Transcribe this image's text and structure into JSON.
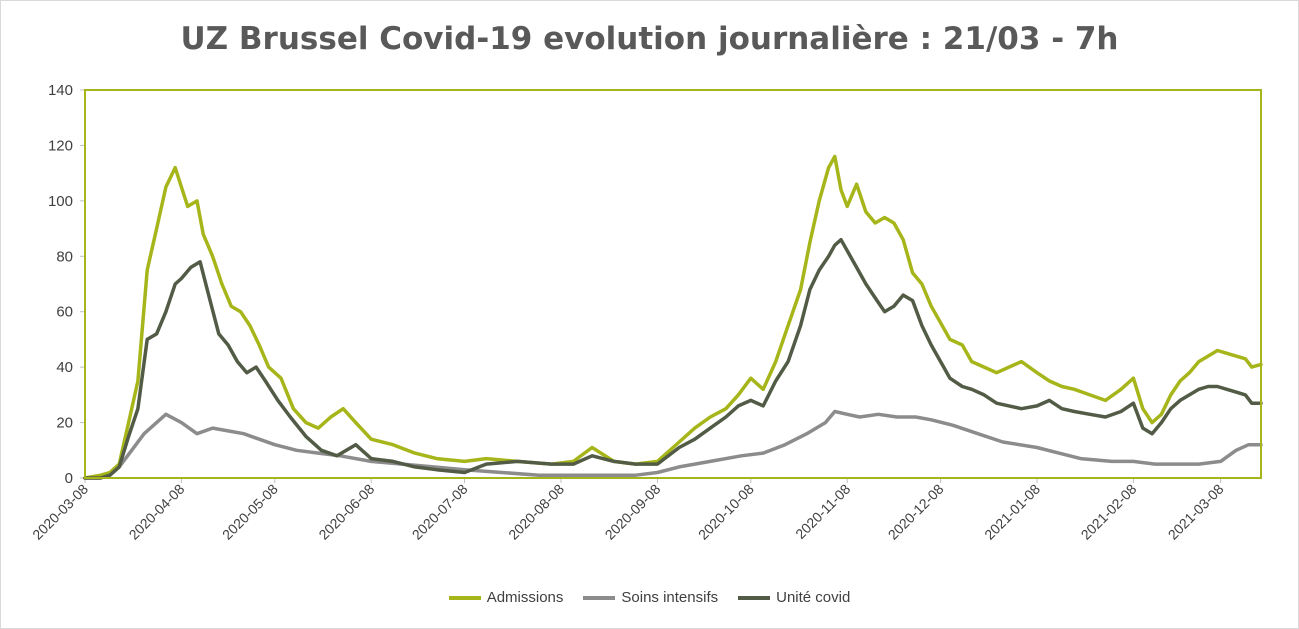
{
  "chart_data": {
    "type": "line",
    "title": "UZ Brussel Covid-19 evolution journalière : 21/03 - 7h",
    "xlabel": "",
    "ylabel": "",
    "ylim": [
      0,
      140
    ],
    "yticks": [
      "0",
      "20",
      "40",
      "60",
      "80",
      "100",
      "120",
      "140"
    ],
    "x_tick_labels": [
      "2020-03-08",
      "2020-04-08",
      "2020-05-08",
      "2020-06-08",
      "2020-07-08",
      "2020-08-08",
      "2020-09-08",
      "2020-10-08",
      "2020-11-08",
      "2020-12-08",
      "2021-01-08",
      "2021-02-08",
      "2021-03-08"
    ],
    "x_range": [
      "2020-03-08",
      "2021-03-21"
    ],
    "grid": "none",
    "legend_position": "bottom",
    "colors": {
      "Admissions": "#a6b61a",
      "Soins intensifs": "#8c8c8c",
      "Unité covid": "#525b45",
      "plot_border": "#a6b61a"
    },
    "series": [
      {
        "name": "Admissions",
        "x": [
          "2020-03-08",
          "2020-03-13",
          "2020-03-16",
          "2020-03-19",
          "2020-03-22",
          "2020-03-25",
          "2020-03-28",
          "2020-03-31",
          "2020-04-03",
          "2020-04-06",
          "2020-04-08",
          "2020-04-10",
          "2020-04-13",
          "2020-04-15",
          "2020-04-18",
          "2020-04-21",
          "2020-04-24",
          "2020-04-27",
          "2020-04-30",
          "2020-05-03",
          "2020-05-06",
          "2020-05-10",
          "2020-05-14",
          "2020-05-18",
          "2020-05-22",
          "2020-05-26",
          "2020-05-30",
          "2020-06-03",
          "2020-06-08",
          "2020-06-15",
          "2020-06-22",
          "2020-06-29",
          "2020-07-08",
          "2020-07-15",
          "2020-07-25",
          "2020-08-05",
          "2020-08-12",
          "2020-08-18",
          "2020-08-25",
          "2020-09-01",
          "2020-09-08",
          "2020-09-15",
          "2020-09-20",
          "2020-09-25",
          "2020-09-30",
          "2020-10-04",
          "2020-10-08",
          "2020-10-12",
          "2020-10-16",
          "2020-10-20",
          "2020-10-24",
          "2020-10-27",
          "2020-10-30",
          "2020-11-02",
          "2020-11-04",
          "2020-11-06",
          "2020-11-08",
          "2020-11-11",
          "2020-11-14",
          "2020-11-17",
          "2020-11-20",
          "2020-11-23",
          "2020-11-26",
          "2020-11-29",
          "2020-12-02",
          "2020-12-05",
          "2020-12-08",
          "2020-12-11",
          "2020-12-15",
          "2020-12-18",
          "2020-12-22",
          "2020-12-26",
          "2020-12-30",
          "2021-01-03",
          "2021-01-08",
          "2021-01-12",
          "2021-01-16",
          "2021-01-20",
          "2021-01-25",
          "2021-01-30",
          "2021-02-04",
          "2021-02-08",
          "2021-02-11",
          "2021-02-14",
          "2021-02-17",
          "2021-02-20",
          "2021-02-23",
          "2021-02-26",
          "2021-03-01",
          "2021-03-04",
          "2021-03-07",
          "2021-03-10",
          "2021-03-13",
          "2021-03-16",
          "2021-03-18",
          "2021-03-21"
        ],
        "values": [
          0,
          1,
          2,
          5,
          20,
          35,
          75,
          90,
          105,
          112,
          105,
          98,
          100,
          88,
          80,
          70,
          62,
          60,
          55,
          48,
          40,
          36,
          25,
          20,
          18,
          22,
          25,
          20,
          14,
          12,
          9,
          7,
          6,
          7,
          6,
          5,
          6,
          11,
          6,
          5,
          6,
          13,
          18,
          22,
          25,
          30,
          36,
          32,
          42,
          55,
          68,
          85,
          100,
          112,
          116,
          104,
          98,
          106,
          96,
          92,
          94,
          92,
          86,
          74,
          70,
          62,
          56,
          50,
          48,
          42,
          40,
          38,
          40,
          42,
          38,
          35,
          33,
          32,
          30,
          28,
          32,
          36,
          25,
          20,
          23,
          30,
          35,
          38,
          42,
          44,
          46,
          45,
          44,
          43,
          40,
          41
        ]
      },
      {
        "name": "Soins intensifs",
        "x": [
          "2020-03-08",
          "2020-03-13",
          "2020-03-16",
          "2020-03-19",
          "2020-03-23",
          "2020-03-27",
          "2020-03-31",
          "2020-04-03",
          "2020-04-08",
          "2020-04-13",
          "2020-04-18",
          "2020-04-23",
          "2020-04-28",
          "2020-05-03",
          "2020-05-08",
          "2020-05-15",
          "2020-05-22",
          "2020-05-29",
          "2020-06-08",
          "2020-06-18",
          "2020-06-28",
          "2020-07-08",
          "2020-07-20",
          "2020-08-01",
          "2020-08-10",
          "2020-08-20",
          "2020-09-01",
          "2020-09-08",
          "2020-09-15",
          "2020-09-25",
          "2020-10-05",
          "2020-10-12",
          "2020-10-19",
          "2020-10-26",
          "2020-11-01",
          "2020-11-04",
          "2020-11-08",
          "2020-11-12",
          "2020-11-18",
          "2020-11-24",
          "2020-11-30",
          "2020-12-05",
          "2020-12-12",
          "2020-12-20",
          "2020-12-28",
          "2021-01-08",
          "2021-01-15",
          "2021-01-22",
          "2021-02-01",
          "2021-02-08",
          "2021-02-15",
          "2021-02-22",
          "2021-03-01",
          "2021-03-08",
          "2021-03-13",
          "2021-03-17",
          "2021-03-21"
        ],
        "values": [
          0,
          0,
          1,
          4,
          10,
          16,
          20,
          23,
          20,
          16,
          18,
          17,
          16,
          14,
          12,
          10,
          9,
          8,
          6,
          5,
          4,
          3,
          2,
          1,
          1,
          1,
          1,
          2,
          4,
          6,
          8,
          9,
          12,
          16,
          20,
          24,
          23,
          22,
          23,
          22,
          22,
          21,
          19,
          16,
          13,
          11,
          9,
          7,
          6,
          6,
          5,
          5,
          5,
          6,
          10,
          12,
          12
        ]
      },
      {
        "name": "Unité covid",
        "x": [
          "2020-03-08",
          "2020-03-13",
          "2020-03-16",
          "2020-03-19",
          "2020-03-22",
          "2020-03-25",
          "2020-03-28",
          "2020-03-31",
          "2020-04-03",
          "2020-04-06",
          "2020-04-08",
          "2020-04-11",
          "2020-04-14",
          "2020-04-17",
          "2020-04-20",
          "2020-04-23",
          "2020-04-26",
          "2020-04-29",
          "2020-05-02",
          "2020-05-05",
          "2020-05-09",
          "2020-05-13",
          "2020-05-18",
          "2020-05-23",
          "2020-05-28",
          "2020-06-03",
          "2020-06-08",
          "2020-06-15",
          "2020-06-22",
          "2020-06-29",
          "2020-07-08",
          "2020-07-15",
          "2020-07-25",
          "2020-08-05",
          "2020-08-12",
          "2020-08-18",
          "2020-08-25",
          "2020-09-01",
          "2020-09-08",
          "2020-09-15",
          "2020-09-20",
          "2020-09-25",
          "2020-09-30",
          "2020-10-04",
          "2020-10-08",
          "2020-10-12",
          "2020-10-16",
          "2020-10-20",
          "2020-10-24",
          "2020-10-27",
          "2020-10-30",
          "2020-11-02",
          "2020-11-04",
          "2020-11-06",
          "2020-11-08",
          "2020-11-11",
          "2020-11-14",
          "2020-11-17",
          "2020-11-20",
          "2020-11-23",
          "2020-11-26",
          "2020-11-29",
          "2020-12-02",
          "2020-12-05",
          "2020-12-08",
          "2020-12-11",
          "2020-12-15",
          "2020-12-18",
          "2020-12-22",
          "2020-12-26",
          "2020-12-30",
          "2021-01-03",
          "2021-01-08",
          "2021-01-12",
          "2021-01-16",
          "2021-01-20",
          "2021-01-25",
          "2021-01-30",
          "2021-02-04",
          "2021-02-08",
          "2021-02-11",
          "2021-02-14",
          "2021-02-17",
          "2021-02-20",
          "2021-02-23",
          "2021-02-26",
          "2021-03-01",
          "2021-03-04",
          "2021-03-07",
          "2021-03-10",
          "2021-03-13",
          "2021-03-16",
          "2021-03-18",
          "2021-03-21"
        ],
        "values": [
          0,
          0,
          1,
          4,
          15,
          25,
          50,
          52,
          60,
          70,
          72,
          76,
          78,
          65,
          52,
          48,
          42,
          38,
          40,
          35,
          28,
          22,
          15,
          10,
          8,
          12,
          7,
          6,
          4,
          3,
          2,
          5,
          6,
          5,
          5,
          8,
          6,
          5,
          5,
          11,
          14,
          18,
          22,
          26,
          28,
          26,
          35,
          42,
          55,
          68,
          75,
          80,
          84,
          86,
          82,
          76,
          70,
          65,
          60,
          62,
          66,
          64,
          55,
          48,
          42,
          36,
          33,
          32,
          30,
          27,
          26,
          25,
          26,
          28,
          25,
          24,
          23,
          22,
          24,
          27,
          18,
          16,
          20,
          25,
          28,
          30,
          32,
          33,
          33,
          32,
          31,
          30,
          27,
          27
        ]
      }
    ]
  }
}
